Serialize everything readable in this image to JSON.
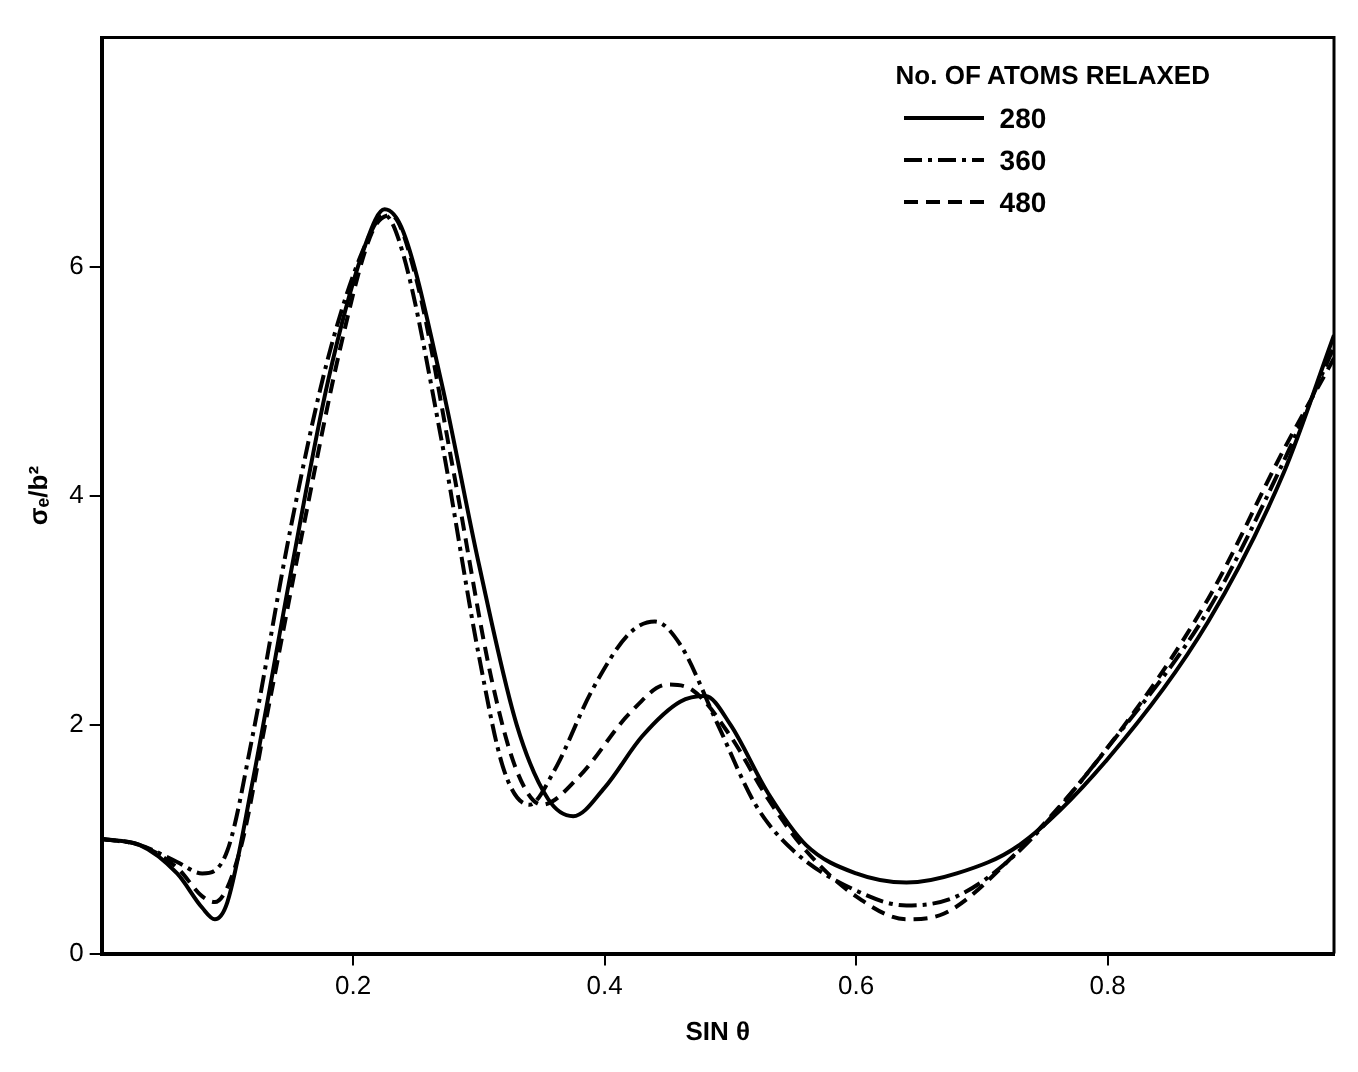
{
  "chart_data": {
    "type": "line",
    "xlabel": "SIN θ",
    "ylabel": "σₑ/b²",
    "legend_title": "No. OF ATOMS RELAXED",
    "legend": "top right",
    "grid": false,
    "marker": "none",
    "xlim": [
      0,
      0.98
    ],
    "xticks": [
      0.2,
      0.4,
      0.6,
      0.8
    ],
    "ylim": [
      0,
      8
    ],
    "yticks": [
      0,
      2,
      4,
      6
    ],
    "series": [
      {
        "name": "280",
        "color": "#000000",
        "line_style": "solid",
        "x": [
          0,
          0.03,
          0.06,
          0.08,
          0.09,
          0.1,
          0.12,
          0.15,
          0.18,
          0.21,
          0.225,
          0.24,
          0.27,
          0.3,
          0.33,
          0.355,
          0.375,
          0.4,
          0.43,
          0.46,
          0.48,
          0.5,
          0.53,
          0.56,
          0.6,
          0.64,
          0.68,
          0.73,
          0.8,
          0.88,
          0.94,
          0.98
        ],
        "values": [
          1.0,
          0.95,
          0.7,
          0.4,
          0.3,
          0.45,
          1.5,
          3.3,
          5.0,
          6.2,
          6.5,
          6.3,
          5.0,
          3.4,
          2.0,
          1.35,
          1.2,
          1.45,
          1.9,
          2.2,
          2.25,
          2.0,
          1.4,
          0.95,
          0.7,
          0.62,
          0.7,
          0.95,
          1.7,
          2.9,
          4.2,
          5.4
        ]
      },
      {
        "name": "360",
        "color": "#000000",
        "line_style": "dashdot",
        "x": [
          0,
          0.03,
          0.06,
          0.08,
          0.1,
          0.12,
          0.15,
          0.18,
          0.21,
          0.225,
          0.24,
          0.27,
          0.3,
          0.32,
          0.34,
          0.36,
          0.39,
          0.42,
          0.44,
          0.46,
          0.49,
          0.52,
          0.55,
          0.6,
          0.64,
          0.68,
          0.73,
          0.8,
          0.88,
          0.94,
          0.98
        ],
        "values": [
          1.0,
          0.95,
          0.8,
          0.7,
          0.9,
          1.9,
          3.7,
          5.2,
          6.2,
          6.45,
          6.1,
          4.5,
          2.6,
          1.6,
          1.3,
          1.6,
          2.3,
          2.8,
          2.9,
          2.7,
          2.0,
          1.3,
          0.9,
          0.55,
          0.42,
          0.5,
          0.9,
          1.8,
          3.0,
          4.3,
          5.3
        ]
      },
      {
        "name": "480",
        "color": "#000000",
        "line_style": "dashed",
        "x": [
          0,
          0.03,
          0.06,
          0.08,
          0.09,
          0.11,
          0.13,
          0.16,
          0.19,
          0.215,
          0.23,
          0.25,
          0.28,
          0.31,
          0.33,
          0.35,
          0.38,
          0.42,
          0.45,
          0.47,
          0.5,
          0.53,
          0.56,
          0.6,
          0.64,
          0.67,
          0.72,
          0.8,
          0.88,
          0.94,
          0.98
        ],
        "values": [
          1.0,
          0.95,
          0.75,
          0.5,
          0.45,
          0.9,
          2.0,
          3.7,
          5.3,
          6.3,
          6.45,
          5.9,
          4.2,
          2.4,
          1.6,
          1.3,
          1.55,
          2.1,
          2.35,
          2.3,
          1.9,
          1.35,
          0.9,
          0.5,
          0.3,
          0.35,
          0.8,
          1.8,
          3.1,
          4.4,
          5.2
        ]
      }
    ]
  }
}
